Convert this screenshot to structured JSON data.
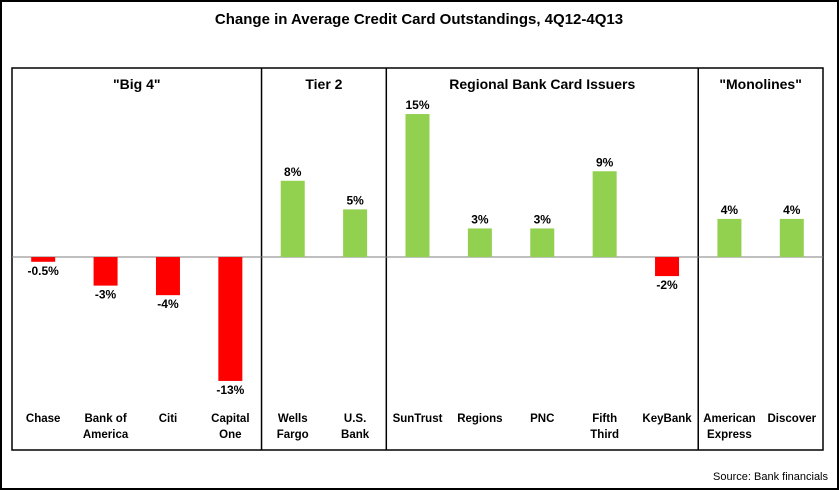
{
  "chart_data": {
    "type": "bar",
    "title": "Change in Average Credit Card Outstandings, 4Q12-4Q13",
    "source": "Source: Bank financials",
    "ylim": [
      -15,
      17
    ],
    "grid": false,
    "legend": "none",
    "groups": [
      {
        "label": "\"Big 4\"",
        "start": 0,
        "end": 3
      },
      {
        "label": "Tier 2",
        "start": 4,
        "end": 5
      },
      {
        "label": "Regional Bank Card Issuers",
        "start": 6,
        "end": 10
      },
      {
        "label": "\"Monolines\"",
        "start": 11,
        "end": 12
      }
    ],
    "categories": [
      [
        "Chase"
      ],
      [
        "Bank of",
        "America"
      ],
      [
        "Citi"
      ],
      [
        "Capital",
        "One"
      ],
      [
        "Wells",
        "Fargo"
      ],
      [
        "U.S.",
        "Bank"
      ],
      [
        "SunTrust"
      ],
      [
        "Regions"
      ],
      [
        "PNC"
      ],
      [
        "Fifth",
        "Third"
      ],
      [
        "KeyBank"
      ],
      [
        "American",
        "Express"
      ],
      [
        "Discover"
      ]
    ],
    "values": [
      -0.5,
      -3,
      -4,
      -13,
      8,
      5,
      15,
      3,
      3,
      9,
      -2,
      4,
      4
    ],
    "data_labels": [
      "-0.5%",
      "-3%",
      "-4%",
      "-13%",
      "8%",
      "5%",
      "15%",
      "3%",
      "3%",
      "9%",
      "-2%",
      "4%",
      "4%"
    ]
  },
  "colors": {
    "positive": "#92D050",
    "negative": "#FF0000",
    "border": "#000000",
    "text": "#000000"
  }
}
